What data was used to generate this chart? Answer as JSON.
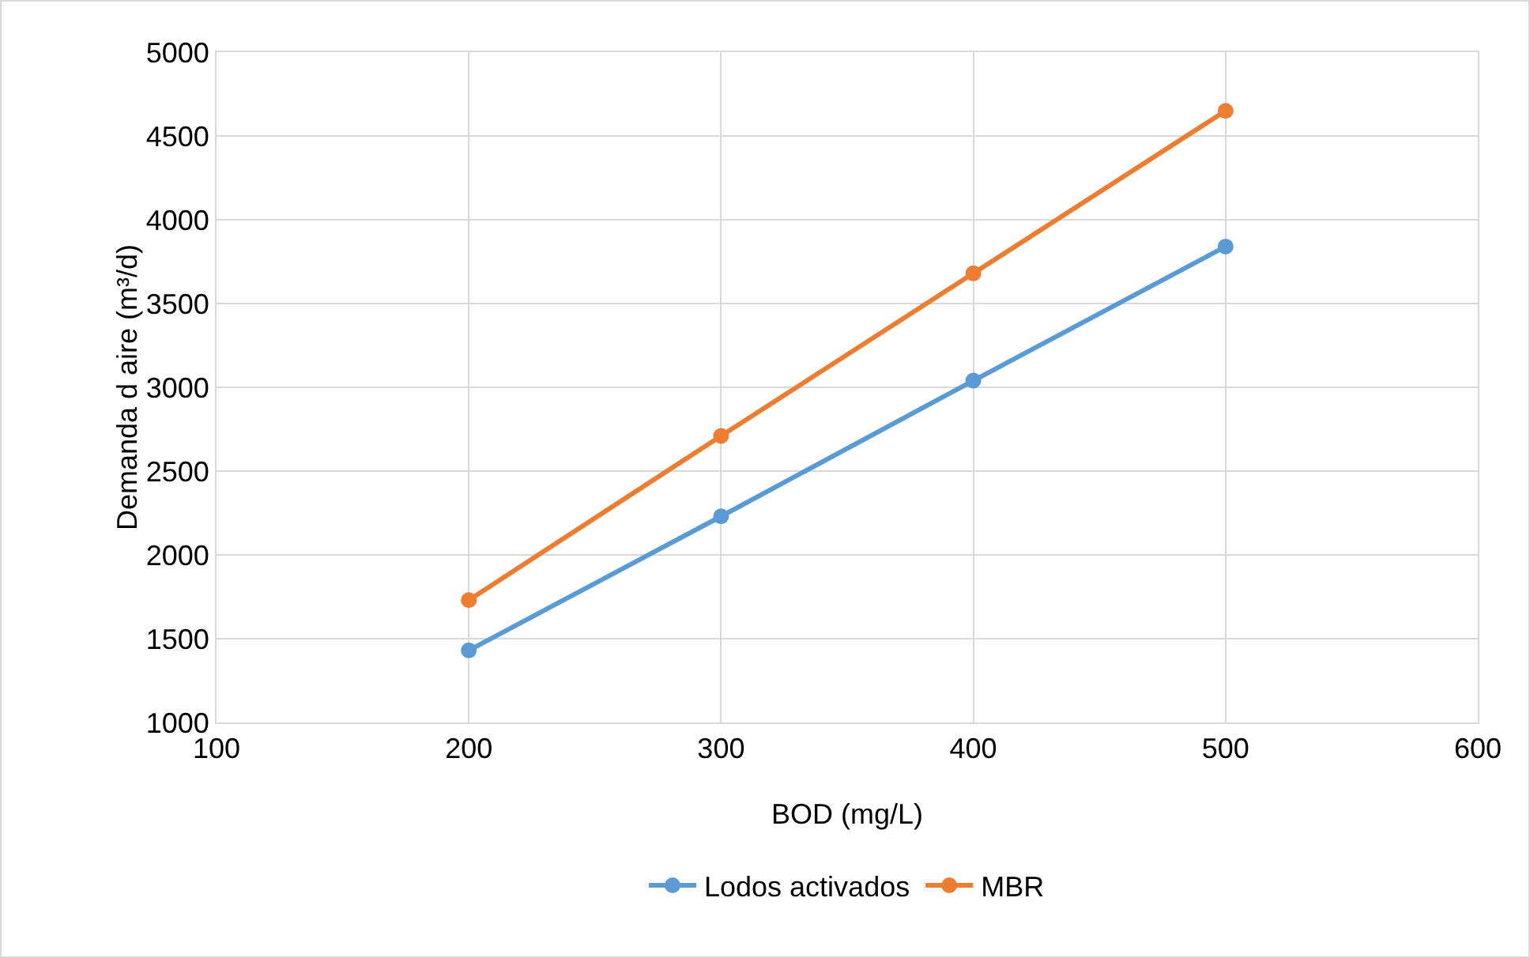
{
  "chart_data": {
    "type": "line",
    "xlabel": "BOD (mg/L)",
    "ylabel": "Demanda d aire (m³/d)",
    "x": [
      200,
      300,
      400,
      500
    ],
    "series": [
      {
        "name": "Lodos activados",
        "color": "#5b9bd5",
        "values": [
          1430,
          2230,
          3040,
          3840
        ]
      },
      {
        "name": "MBR",
        "color": "#ed7d31",
        "values": [
          1730,
          2710,
          3680,
          4650
        ]
      }
    ],
    "xlim": [
      100,
      600
    ],
    "xticks": [
      100,
      200,
      300,
      400,
      500,
      600
    ],
    "ylim": [
      1000,
      5000
    ],
    "yticks": [
      1000,
      1500,
      2000,
      2500,
      3000,
      3500,
      4000,
      4500,
      5000
    ],
    "grid": true,
    "legend": "bottom",
    "marker": "circle",
    "line_style": "solid"
  }
}
